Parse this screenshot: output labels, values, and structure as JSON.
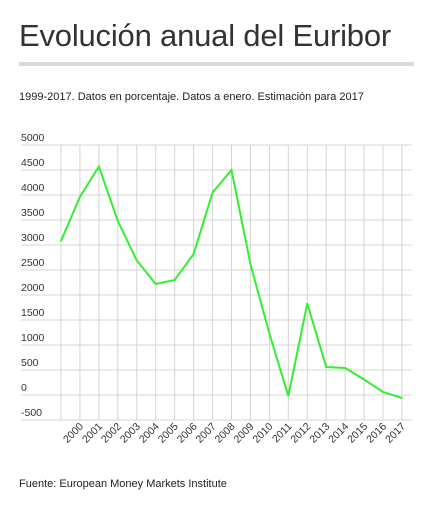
{
  "header": {
    "title": "Evolución anual del Euribor",
    "subtitle": "1999-2017. Datos en porcentaje. Datos a enero. Estimación para 2017"
  },
  "footer": {
    "source": "Fuente: European Money Markets Institute"
  },
  "colors": {
    "line": "#33ee33",
    "grid": "#d4d4d4",
    "axis": "#333333"
  },
  "chart_data": {
    "type": "line",
    "title": "",
    "xlabel": "",
    "ylabel": "",
    "grid": true,
    "legend": "none",
    "ylim": [
      -500,
      5000
    ],
    "y_ticks": [
      5000,
      4500,
      4000,
      3500,
      3000,
      2500,
      2000,
      1500,
      1000,
      500,
      0,
      -500
    ],
    "x_ticks": [
      "2000",
      "2001",
      "2002",
      "2003",
      "2004",
      "2005",
      "2006",
      "2007",
      "2008",
      "2009",
      "2010",
      "2011",
      "2012",
      "2013",
      "2014",
      "2015",
      "2016",
      "2017"
    ],
    "x": [
      "1999",
      "2000",
      "2001",
      "2002",
      "2003",
      "2004",
      "2005",
      "2006",
      "2007",
      "2008",
      "2009",
      "2010",
      "2011",
      "2012",
      "2013",
      "2014",
      "2015",
      "2016",
      "2017"
    ],
    "series": [
      {
        "values": [
          3080,
          3960,
          4570,
          3480,
          2690,
          2220,
          2300,
          2820,
          4050,
          4500,
          2620,
          1230,
          -20,
          1830,
          560,
          540,
          310,
          60,
          -60
        ]
      }
    ]
  }
}
